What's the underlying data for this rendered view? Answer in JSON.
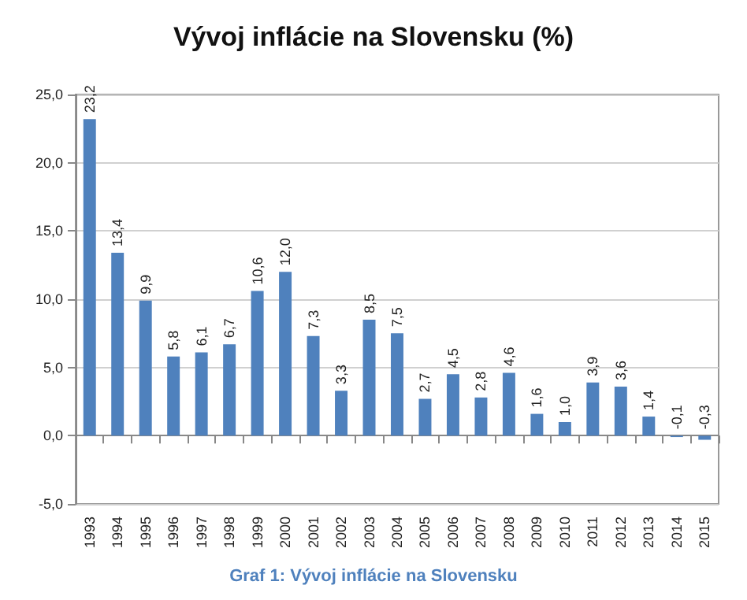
{
  "chart_data": {
    "type": "bar",
    "title": "Vývoj inflácie na Slovensku (%)",
    "categories": [
      "1993",
      "1994",
      "1995",
      "1996",
      "1997",
      "1998",
      "1999",
      "2000",
      "2001",
      "2002",
      "2003",
      "2004",
      "2005",
      "2006",
      "2007",
      "2008",
      "2009",
      "2010",
      "2011",
      "2012",
      "2013",
      "2014",
      "2015"
    ],
    "values": [
      23.2,
      13.4,
      9.9,
      5.8,
      6.1,
      6.7,
      10.6,
      12.0,
      7.3,
      3.3,
      8.5,
      7.5,
      2.7,
      4.5,
      2.8,
      4.6,
      1.6,
      1.0,
      3.9,
      3.6,
      1.4,
      -0.1,
      -0.3
    ],
    "value_labels": [
      "23,2",
      "13,4",
      "9,9",
      "5,8",
      "6,1",
      "6,7",
      "10,6",
      "12,0",
      "7,3",
      "3,3",
      "8,5",
      "7,5",
      "2,7",
      "4,5",
      "2,8",
      "4,6",
      "1,6",
      "1,0",
      "3,9",
      "3,6",
      "1,4",
      "-0,1",
      "-0,3"
    ],
    "color": "#4f81bd",
    "ylim": [
      -5,
      25
    ],
    "yticks": [
      {
        "value": -5,
        "label": "-5,0"
      },
      {
        "value": 0,
        "label": "0,0"
      },
      {
        "value": 5,
        "label": "5,0"
      },
      {
        "value": 10,
        "label": "10,0"
      },
      {
        "value": 15,
        "label": "15,0"
      },
      {
        "value": 20,
        "label": "20,0"
      },
      {
        "value": 25,
        "label": "25,0"
      }
    ],
    "grid": "y",
    "annotations": [
      "Graf 1: Vývoj inflácie na Slovensku"
    ]
  }
}
